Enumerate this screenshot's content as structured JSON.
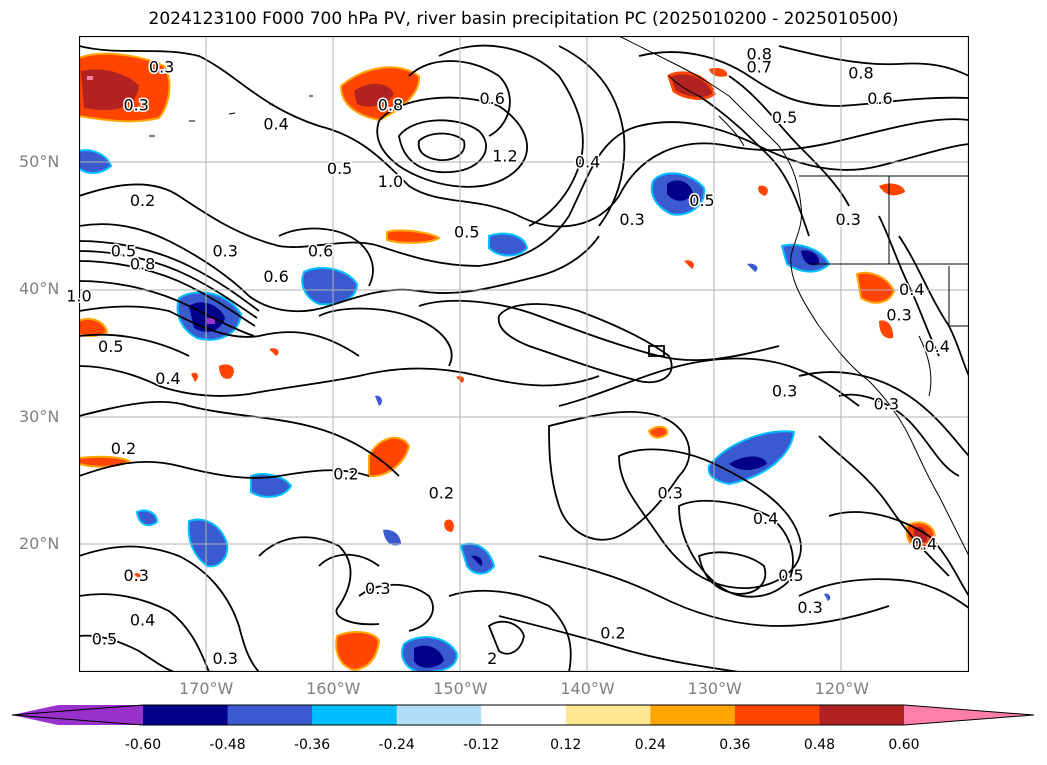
{
  "title": "2024123100 F000 700 hPa PV, river basin precipitation PC (2025010200 - 2025010500)",
  "map": {
    "lat_labels": [
      "50°N",
      "40°N",
      "30°N",
      "20°N"
    ],
    "lon_labels": [
      "170°W",
      "160°W",
      "150°W",
      "140°W",
      "130°W",
      "120°W"
    ],
    "gridlines": true,
    "contour_labels": [
      {
        "text": "0.3",
        "lon": -173.5,
        "lat": 57.5
      },
      {
        "text": "0.3",
        "lon": -175.5,
        "lat": 54.5
      },
      {
        "text": "0.4",
        "lon": -164.5,
        "lat": 53.0
      },
      {
        "text": "0.8",
        "lon": -155.5,
        "lat": 54.5
      },
      {
        "text": "0.6",
        "lon": -147.5,
        "lat": 55.0
      },
      {
        "text": "0.5",
        "lon": -159.5,
        "lat": 49.5
      },
      {
        "text": "1.0",
        "lon": -155.5,
        "lat": 48.5
      },
      {
        "text": "1.2",
        "lon": -146.5,
        "lat": 50.5
      },
      {
        "text": "0.5",
        "lon": -149.5,
        "lat": 44.5
      },
      {
        "text": "0.4",
        "lon": -140.0,
        "lat": 50.0
      },
      {
        "text": "0.3",
        "lon": -136.5,
        "lat": 45.5
      },
      {
        "text": "0.8",
        "lon": -126.5,
        "lat": 58.5
      },
      {
        "text": "0.7",
        "lon": -126.5,
        "lat": 57.5
      },
      {
        "text": "0.8",
        "lon": -118.5,
        "lat": 57.0
      },
      {
        "text": "0.6",
        "lon": -117.0,
        "lat": 55.0
      },
      {
        "text": "0.5",
        "lon": -124.5,
        "lat": 53.5
      },
      {
        "text": "0.5",
        "lon": -131.0,
        "lat": 47.0
      },
      {
        "text": "0.3",
        "lon": -119.5,
        "lat": 45.5
      },
      {
        "text": "0.2",
        "lon": -175.0,
        "lat": 47.0
      },
      {
        "text": "0.3",
        "lon": -168.5,
        "lat": 43.0
      },
      {
        "text": "0.5",
        "lon": -176.5,
        "lat": 43.0
      },
      {
        "text": "0.8",
        "lon": -175.0,
        "lat": 42.0
      },
      {
        "text": "0.6",
        "lon": -161.0,
        "lat": 43.0
      },
      {
        "text": "0.6",
        "lon": -164.5,
        "lat": 41.0
      },
      {
        "text": "1.0",
        "lon": -180.0,
        "lat": 39.5
      },
      {
        "text": "0.5",
        "lon": -177.5,
        "lat": 35.5
      },
      {
        "text": "0.4",
        "lon": -173.0,
        "lat": 33.0
      },
      {
        "text": "0.3",
        "lon": -115.5,
        "lat": 38.0
      },
      {
        "text": "0.4",
        "lon": -114.5,
        "lat": 40.0
      },
      {
        "text": "0.4",
        "lon": -112.5,
        "lat": 35.5
      },
      {
        "text": "0.3",
        "lon": -116.5,
        "lat": 31.0
      },
      {
        "text": "0.3",
        "lon": -124.5,
        "lat": 32.0
      },
      {
        "text": "0.2",
        "lon": -176.5,
        "lat": 27.5
      },
      {
        "text": "0.2",
        "lon": -159.0,
        "lat": 25.5
      },
      {
        "text": "0.2",
        "lon": -151.5,
        "lat": 24.0
      },
      {
        "text": "0.3",
        "lon": -133.5,
        "lat": 24.0
      },
      {
        "text": "0.4",
        "lon": -126.0,
        "lat": 22.0
      },
      {
        "text": "0.5",
        "lon": -124.0,
        "lat": 17.5
      },
      {
        "text": "0.3",
        "lon": -122.5,
        "lat": 15.0
      },
      {
        "text": "0.4",
        "lon": -113.5,
        "lat": 20.0
      },
      {
        "text": "0.3",
        "lon": -175.5,
        "lat": 17.5
      },
      {
        "text": "0.3",
        "lon": -156.5,
        "lat": 16.5
      },
      {
        "text": "0.4",
        "lon": -175.0,
        "lat": 14.0
      },
      {
        "text": "0.5",
        "lon": -178.0,
        "lat": 12.5
      },
      {
        "text": "0.3",
        "lon": -168.5,
        "lat": 11.0
      },
      {
        "text": "0.2",
        "lon": -138.0,
        "lat": 13.0
      },
      {
        "text": "2",
        "lon": -147.5,
        "lat": 11.0
      }
    ]
  },
  "colorbar": {
    "ticks": [
      "-0.60",
      "-0.48",
      "-0.36",
      "-0.24",
      "-0.12",
      "0.12",
      "0.24",
      "0.36",
      "0.48",
      "0.60"
    ],
    "colors": [
      "#9932cc",
      "#00008b",
      "#3a5bd0",
      "#00bfff",
      "#b0e0f8",
      "#ffffff",
      "#fce891",
      "#ffa500",
      "#ff4500",
      "#b22222",
      "#ff7fa8"
    ]
  }
}
